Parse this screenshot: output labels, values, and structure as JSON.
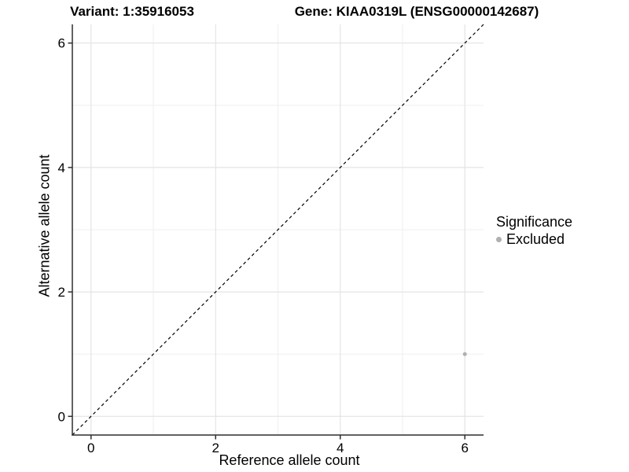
{
  "chart_data": {
    "type": "scatter",
    "title_left": "Variant: 1:35916053",
    "title_right": "Gene: KIAA0319L (ENSG00000142687)",
    "xlabel": "Reference allele count",
    "ylabel": "Alternative allele count",
    "xlim": [
      -0.3,
      6.3
    ],
    "ylim": [
      -0.3,
      6.3
    ],
    "xticks": [
      0,
      2,
      4,
      6
    ],
    "yticks": [
      0,
      2,
      4,
      6
    ],
    "xticks_minor": [
      1,
      3,
      5
    ],
    "yticks_minor": [
      1,
      3,
      5
    ],
    "grid": "major+minor",
    "identity_line": {
      "slope": 1,
      "intercept": 0,
      "style": "dashed",
      "color": "#000000",
      "from": [
        -0.3,
        -0.3
      ],
      "to": [
        6.3,
        6.3
      ]
    },
    "series": [
      {
        "name": "Excluded",
        "color": "#b0b0b0",
        "points": [
          {
            "x": 6,
            "y": 1
          }
        ]
      }
    ],
    "legend": {
      "title": "Significance",
      "position": "right",
      "items": [
        {
          "label": "Excluded",
          "color": "#b0b0b0"
        }
      ]
    },
    "colors": {
      "grid_major": "#e4e4e4",
      "grid_minor": "#efefef",
      "axis_line": "#2f2f2f",
      "tick_mark": "#2f2f2f",
      "text": "#000000",
      "background": "#ffffff"
    }
  }
}
